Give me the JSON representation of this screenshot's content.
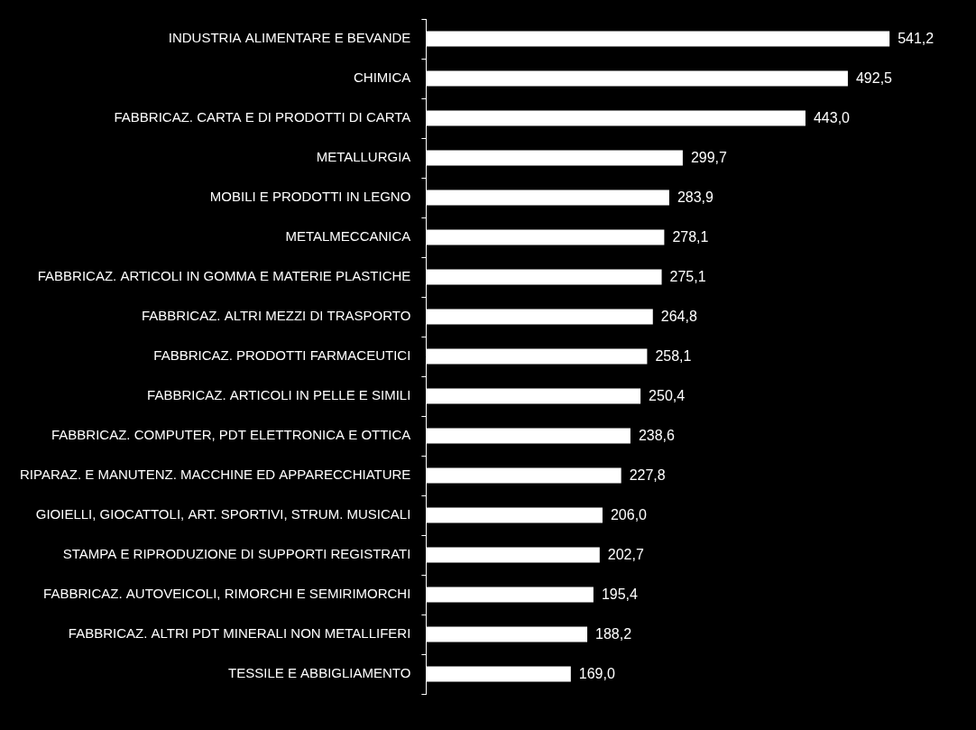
{
  "chart_data": {
    "type": "bar",
    "orientation": "horizontal",
    "categories": [
      "INDUSTRIA ALIMENTARE E BEVANDE",
      "CHIMICA",
      "FABBRICAZ. CARTA E DI PRODOTTI DI CARTA",
      "METALLURGIA",
      "MOBILI E PRODOTTI IN LEGNO",
      "METALMECCANICA",
      "FABBRICAZ. ARTICOLI IN GOMMA E MATERIE PLASTICHE",
      "FABBRICAZ. ALTRI MEZZI DI TRASPORTO",
      "FABBRICAZ. PRODOTTI FARMACEUTICI",
      "FABBRICAZ. ARTICOLI IN PELLE E SIMILI",
      "FABBRICAZ. COMPUTER, PDT ELETTRONICA E OTTICA",
      "RIPARAZ. E MANUTENZ. MACCHINE ED APPARECCHIATURE",
      "GIOIELLI, GIOCATTOLI, ART. SPORTIVI, STRUM. MUSICALI",
      "STAMPA E RIPRODUZIONE DI SUPPORTI REGISTRATI",
      "FABBRICAZ. AUTOVEICOLI, RIMORCHI E SEMIRIMORCHI",
      "FABBRICAZ. ALTRI PDT MINERALI NON METALLIFERI",
      "TESSILE E ABBIGLIAMENTO"
    ],
    "values": [
      541.2,
      492.5,
      443.0,
      299.7,
      283.9,
      278.1,
      275.1,
      264.8,
      258.1,
      250.4,
      238.6,
      227.8,
      206.0,
      202.7,
      195.4,
      188.2,
      169.0
    ],
    "value_labels": [
      "541,2",
      "492,5",
      "443,0",
      "299,7",
      "283,9",
      "278,1",
      "275,1",
      "264,8",
      "258,1",
      "250,4",
      "238,6",
      "227,8",
      "206,0",
      "202,7",
      "195,4",
      "188,2",
      "169,0"
    ],
    "color": "#ffffff",
    "xlim": [
      0,
      600
    ],
    "grid": false,
    "data_labels": true,
    "tick_labels": "y"
  }
}
